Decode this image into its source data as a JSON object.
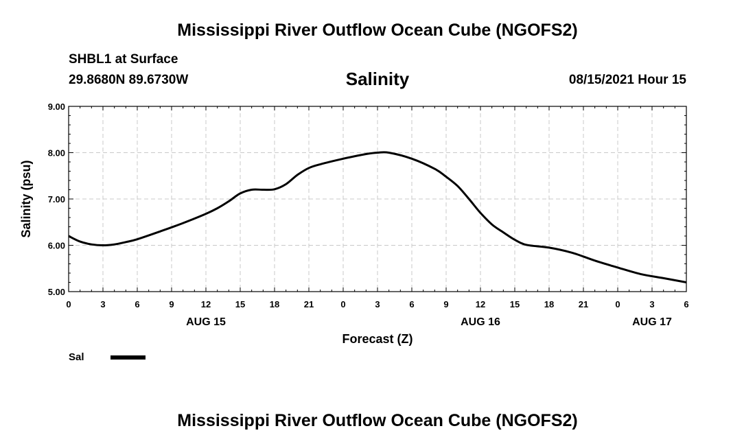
{
  "header": {
    "title": "Mississippi River Outflow Ocean Cube (NGOFS2)",
    "station": "SHBL1 at Surface",
    "coordinates": "29.8680N  89.6730W",
    "variable": "Salinity",
    "datetime": "08/15/2021 Hour 15"
  },
  "footer": {
    "title": "Mississippi River Outflow Ocean Cube (NGOFS2)"
  },
  "chart_data": {
    "type": "line",
    "title": "Salinity",
    "xlabel": "Forecast (Z)",
    "ylabel": "Salinity (psu)",
    "xlim": [
      0,
      54
    ],
    "ylim": [
      5.0,
      9.0
    ],
    "grid": true,
    "x_ticks": [
      0,
      3,
      6,
      9,
      12,
      15,
      18,
      21,
      24,
      27,
      30,
      33,
      36,
      39,
      42,
      45,
      48,
      51,
      54
    ],
    "x_tick_labels": [
      "0",
      "3",
      "6",
      "9",
      "12",
      "15",
      "18",
      "21",
      "0",
      "3",
      "6",
      "9",
      "12",
      "15",
      "18",
      "21",
      "0",
      "3",
      "6"
    ],
    "y_ticks": [
      5.0,
      6.0,
      7.0,
      8.0,
      9.0
    ],
    "y_tick_labels": [
      "5.00",
      "6.00",
      "7.00",
      "8.00",
      "9.00"
    ],
    "day_labels": [
      {
        "x": 12,
        "label": "AUG 15"
      },
      {
        "x": 36,
        "label": "AUG 16"
      },
      {
        "x": 51,
        "label": "AUG 17"
      }
    ],
    "legend": {
      "position": "bottom-left",
      "entries": [
        {
          "name": "Sal",
          "color": "#000000"
        }
      ]
    },
    "series": [
      {
        "name": "Sal",
        "color": "#000000",
        "x": [
          0,
          1,
          2,
          3,
          4,
          5,
          6,
          8,
          10,
          12,
          13,
          14,
          15,
          16,
          17,
          18,
          19,
          20,
          21,
          22,
          24,
          26,
          27,
          28,
          30,
          32,
          33,
          34,
          35,
          36,
          37,
          38,
          39,
          40,
          42,
          44,
          46,
          48,
          50,
          52,
          54
        ],
        "y": [
          6.2,
          6.08,
          6.02,
          6.0,
          6.02,
          6.07,
          6.13,
          6.3,
          6.48,
          6.68,
          6.8,
          6.95,
          7.12,
          7.2,
          7.2,
          7.21,
          7.32,
          7.52,
          7.67,
          7.75,
          7.87,
          7.97,
          8.0,
          8.0,
          7.87,
          7.65,
          7.48,
          7.28,
          7.0,
          6.7,
          6.45,
          6.28,
          6.12,
          6.01,
          5.95,
          5.84,
          5.67,
          5.52,
          5.38,
          5.29,
          5.2
        ]
      }
    ]
  }
}
